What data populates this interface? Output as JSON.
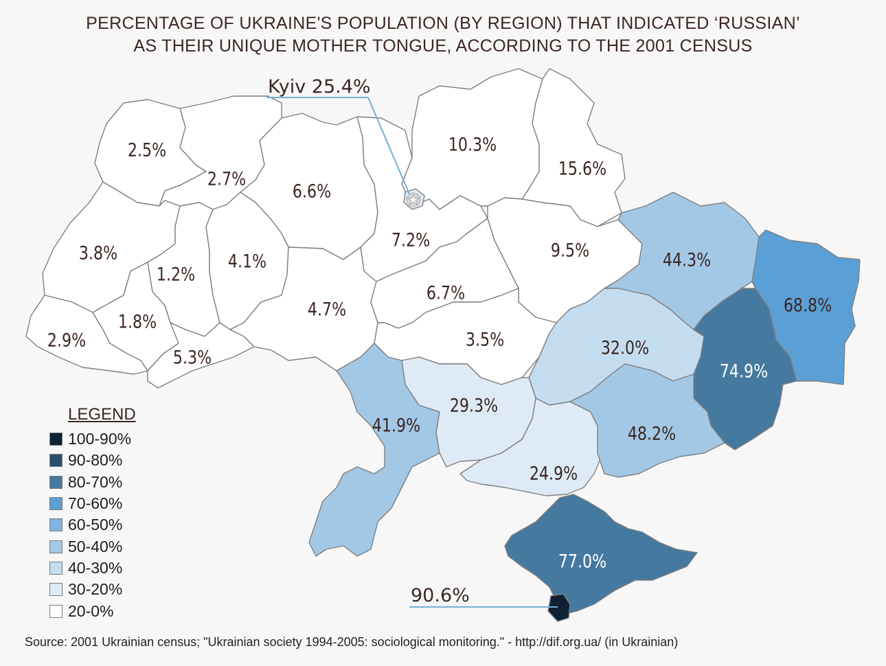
{
  "title_lines": [
    "PERCENTAGE OF UKRAINE'S POPULATION (BY REGION) THAT INDICATED ‘RUSSIAN’",
    "AS THEIR UNIQUE MOTHER TONGUE, ACCORDING TO THE 2001 CENSUS"
  ],
  "colors": {
    "100-90": "#0f2233",
    "90-80": "#2b4e6c",
    "80-70": "#46799f",
    "70-60": "#5aa0d6",
    "60-50": "#7fb4e0",
    "50-40": "#a3c8e6",
    "40-30": "#c4dcf0",
    "30-20": "#deeaf6",
    "20-0": "#ffffff"
  },
  "legend": {
    "title": "LEGEND",
    "items": [
      {
        "label": "100-90%",
        "color": "#0f2233"
      },
      {
        "label": "90-80%",
        "color": "#2b4e6c"
      },
      {
        "label": "80-70%",
        "color": "#46799f"
      },
      {
        "label": "70-60%",
        "color": "#5aa0d6"
      },
      {
        "label": "60-50%",
        "color": "#7fb4e0"
      },
      {
        "label": "50-40%",
        "color": "#a3c8e6"
      },
      {
        "label": "40-30%",
        "color": "#c4dcf0"
      },
      {
        "label": "30-20%",
        "color": "#deeaf6"
      },
      {
        "label": "20-0%",
        "color": "#ffffff"
      }
    ]
  },
  "regions": [
    {
      "id": "volyn",
      "value": "2.5%",
      "pct": 2.5
    },
    {
      "id": "rivne",
      "value": "2.7%",
      "pct": 2.7
    },
    {
      "id": "zhytomyr",
      "value": "6.6%",
      "pct": 6.6
    },
    {
      "id": "kyiv-oblast",
      "value": "7.2%",
      "pct": 7.2
    },
    {
      "id": "chernihiv",
      "value": "10.3%",
      "pct": 10.3
    },
    {
      "id": "sumy",
      "value": "15.6%",
      "pct": 15.6
    },
    {
      "id": "lviv",
      "value": "3.8%",
      "pct": 3.8
    },
    {
      "id": "ternopil",
      "value": "1.2%",
      "pct": 1.2
    },
    {
      "id": "khmelnytskyi",
      "value": "4.1%",
      "pct": 4.1
    },
    {
      "id": "vinnytsia",
      "value": "4.7%",
      "pct": 4.7
    },
    {
      "id": "cherkasy",
      "value": "6.7%",
      "pct": 6.7
    },
    {
      "id": "poltava",
      "value": "9.5%",
      "pct": 9.5
    },
    {
      "id": "kharkiv",
      "value": "44.3%",
      "pct": 44.3
    },
    {
      "id": "luhansk",
      "value": "68.8%",
      "pct": 68.8
    },
    {
      "id": "zakarpattia",
      "value": "2.9%",
      "pct": 2.9
    },
    {
      "id": "ivano-frankivsk",
      "value": "1.8%",
      "pct": 1.8
    },
    {
      "id": "chernivtsi",
      "value": "5.3%",
      "pct": 5.3
    },
    {
      "id": "kirovohrad",
      "value": "3.5%",
      "pct": 3.5
    },
    {
      "id": "dnipropetrovsk",
      "value": "32.0%",
      "pct": 32.0
    },
    {
      "id": "donetsk",
      "value": "74.9%",
      "pct": 74.9
    },
    {
      "id": "odesa",
      "value": "41.9%",
      "pct": 41.9
    },
    {
      "id": "mykolaiv",
      "value": "29.3%",
      "pct": 29.3
    },
    {
      "id": "kherson",
      "value": "24.9%",
      "pct": 24.9
    },
    {
      "id": "zaporizhzhia",
      "value": "48.2%",
      "pct": 48.2
    },
    {
      "id": "crimea",
      "value": "77.0%",
      "pct": 77.0
    },
    {
      "id": "sevastopol",
      "value": "90.6%",
      "pct": 90.6
    },
    {
      "id": "kyiv-city",
      "value": "Kyiv 25.4%",
      "pct": 25.4
    }
  ],
  "source": "Source:  2001 Ukrainian census; \"Ukrainian society 1994-2005: sociological monitoring.\" - http://dif.org.ua/ (in Ukrainian)"
}
